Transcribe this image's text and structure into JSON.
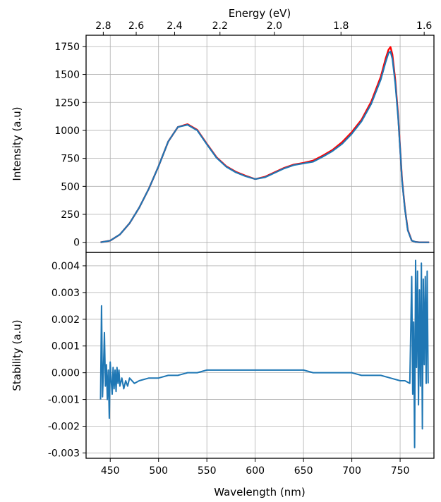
{
  "chart_data": [
    {
      "type": "line",
      "name": "intensity",
      "xlabel": "Wavelength (nm)",
      "ylabel": "Intensity (a.u)",
      "top_xlabel": "Energy (eV)",
      "xlim": [
        425,
        785
      ],
      "ylim": [
        -90,
        1850
      ],
      "grid": true,
      "x_ticks": [
        450,
        500,
        550,
        600,
        650,
        700,
        750
      ],
      "y_ticks": [
        0,
        250,
        500,
        750,
        1000,
        1250,
        1500,
        1750
      ],
      "y_tick_labels": [
        "0",
        "250",
        "500",
        "750",
        "1000",
        "1250",
        "1500",
        "1750"
      ],
      "energy_ticks": [
        2.8,
        2.6,
        2.4,
        2.2,
        2.0,
        1.8,
        1.6
      ],
      "energy_tick_labels": [
        "2.8",
        "2.6",
        "2.4",
        "2.2",
        "2.0",
        "1.8",
        "1.6"
      ],
      "series": [
        {
          "color": "#ff0000",
          "x": [
            440,
            450,
            460,
            470,
            480,
            490,
            500,
            510,
            520,
            530,
            540,
            550,
            560,
            570,
            580,
            590,
            600,
            610,
            620,
            630,
            640,
            650,
            660,
            670,
            680,
            690,
            700,
            710,
            720,
            730,
            735,
            738,
            740,
            742,
            745,
            748,
            750,
            752,
            755,
            758,
            762,
            766,
            770,
            780
          ],
          "y": [
            0,
            15,
            70,
            170,
            310,
            480,
            680,
            900,
            1030,
            1055,
            1005,
            880,
            760,
            680,
            630,
            595,
            565,
            585,
            625,
            665,
            695,
            710,
            730,
            775,
            825,
            895,
            985,
            1095,
            1255,
            1480,
            1640,
            1720,
            1745,
            1680,
            1450,
            1130,
            840,
            560,
            300,
            110,
            15,
            3,
            0,
            0
          ]
        },
        {
          "color": "#1f77b4",
          "x": [
            440,
            450,
            460,
            470,
            480,
            490,
            500,
            510,
            520,
            530,
            540,
            550,
            560,
            570,
            580,
            590,
            600,
            610,
            620,
            630,
            640,
            650,
            660,
            670,
            680,
            690,
            700,
            710,
            720,
            730,
            735,
            738,
            740,
            742,
            745,
            748,
            750,
            752,
            755,
            758,
            762,
            766,
            770,
            780
          ],
          "y": [
            0,
            15,
            70,
            170,
            310,
            480,
            680,
            900,
            1030,
            1050,
            1000,
            875,
            755,
            675,
            625,
            590,
            565,
            580,
            620,
            660,
            690,
            705,
            720,
            765,
            815,
            880,
            970,
            1080,
            1235,
            1455,
            1610,
            1690,
            1705,
            1640,
            1420,
            1110,
            830,
            550,
            295,
            105,
            15,
            3,
            0,
            0
          ]
        }
      ]
    },
    {
      "type": "line",
      "name": "stability",
      "xlabel": "Wavelength (nm)",
      "ylabel": "Stability (a.u)",
      "xlim": [
        425,
        785
      ],
      "ylim": [
        -0.0032,
        0.0045
      ],
      "grid": true,
      "x_ticks": [
        450,
        500,
        550,
        600,
        650,
        700,
        750
      ],
      "x_tick_labels": [
        "450",
        "500",
        "550",
        "600",
        "650",
        "700",
        "750"
      ],
      "y_ticks": [
        -0.003,
        -0.002,
        -0.001,
        0.0,
        0.001,
        0.002,
        0.003,
        0.004
      ],
      "y_tick_labels": [
        "-0.003",
        "-0.002",
        "-0.001",
        "0.000",
        "0.001",
        "0.002",
        "0.003",
        "0.004"
      ],
      "series": [
        {
          "color": "#1f77b4",
          "x": [
            440,
            441,
            442,
            443,
            444,
            445,
            446,
            447,
            448,
            449,
            450,
            451,
            452,
            453,
            454,
            455,
            456,
            457,
            458,
            459,
            460,
            462,
            464,
            466,
            468,
            470,
            475,
            480,
            490,
            500,
            510,
            520,
            530,
            540,
            550,
            560,
            570,
            580,
            590,
            600,
            610,
            620,
            630,
            640,
            650,
            660,
            670,
            680,
            690,
            700,
            710,
            720,
            730,
            740,
            750,
            755,
            760,
            762,
            763,
            764,
            765,
            766,
            767,
            768,
            769,
            770,
            771,
            772,
            773,
            774,
            775,
            776,
            777,
            778,
            779
          ],
          "y": [
            -0.001,
            0.0025,
            -0.0009,
            0.0002,
            0.0015,
            -0.0005,
            0.0003,
            -0.001,
            0.0001,
            -0.0017,
            0.0004,
            -0.0003,
            -0.0008,
            0.0002,
            -0.0006,
            0.0001,
            -0.0007,
            0.0002,
            -0.0004,
            0.0001,
            -0.0005,
            -0.0002,
            -0.0006,
            -0.0003,
            -0.0005,
            -0.0002,
            -0.0004,
            -0.0003,
            -0.0002,
            -0.0002,
            -0.0001,
            -0.0001,
            0.0,
            0.0,
            0.0001,
            0.0001,
            0.0001,
            0.0001,
            0.0001,
            0.0001,
            0.0001,
            0.0001,
            0.0001,
            0.0001,
            0.0001,
            0.0,
            0.0,
            0.0,
            0.0,
            0.0,
            -0.0001,
            -0.0001,
            -0.0001,
            -0.0002,
            -0.0003,
            -0.0003,
            -0.0004,
            0.0036,
            -0.0008,
            0.0019,
            -0.0028,
            0.0042,
            0.0002,
            0.0038,
            -0.0012,
            0.0031,
            -0.0005,
            0.0041,
            -0.0021,
            0.0035,
            0.0003,
            0.0036,
            -0.0004,
            0.0038,
            -0.0004
          ]
        }
      ]
    }
  ]
}
